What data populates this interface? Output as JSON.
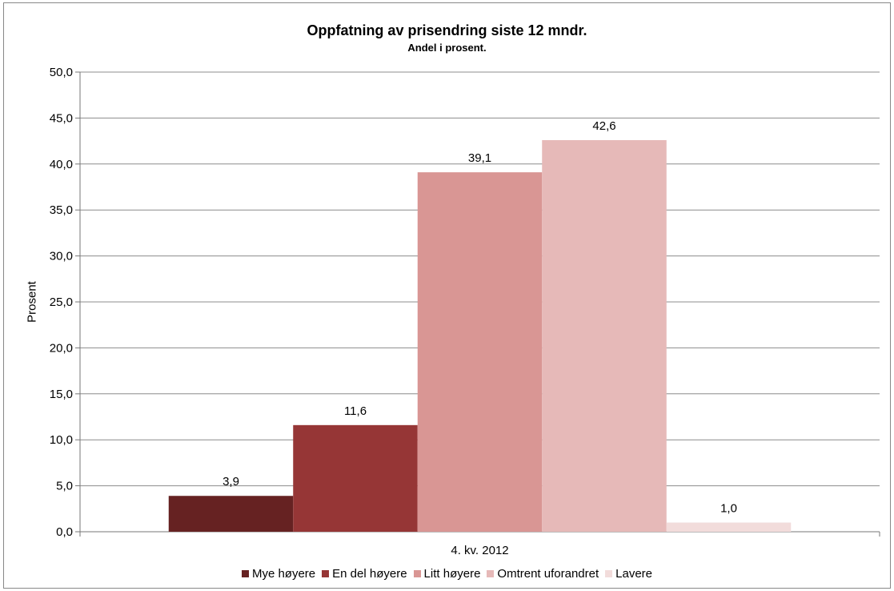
{
  "chart_data": {
    "type": "bar",
    "title": "Oppfatning av prisendring siste 12 mndr.",
    "subtitle": "Andel i prosent.",
    "xlabel": "",
    "ylabel": "Prosent",
    "ylim": [
      0,
      50
    ],
    "y_ticks": [
      "0,0",
      "5,0",
      "10,0",
      "15,0",
      "20,0",
      "25,0",
      "30,0",
      "35,0",
      "40,0",
      "45,0",
      "50,0"
    ],
    "categories": [
      "4. kv. 2012"
    ],
    "grid": true,
    "legend_position": "bottom",
    "series": [
      {
        "name": "Mye høyere",
        "values": [
          3.9
        ],
        "label": "3,9",
        "color": "#662222"
      },
      {
        "name": "En del høyere",
        "values": [
          11.6
        ],
        "label": "11,6",
        "color": "#963636"
      },
      {
        "name": "Litt høyere",
        "values": [
          39.1
        ],
        "label": "39,1",
        "color": "#d99694"
      },
      {
        "name": "Omtrent uforandret",
        "values": [
          42.6
        ],
        "label": "42,6",
        "color": "#e6b9b8"
      },
      {
        "name": "Lavere",
        "values": [
          1.0
        ],
        "label": "1,0",
        "color": "#f2dcdb"
      }
    ]
  }
}
